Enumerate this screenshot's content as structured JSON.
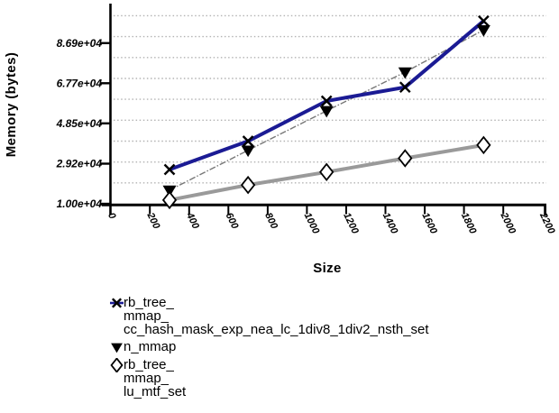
{
  "figure": {
    "background": "#ffffff",
    "axis_color": "#000000"
  },
  "chart_data": {
    "type": "line",
    "title": "",
    "xlabel": "Size",
    "ylabel": "Memory (bytes)",
    "x": [
      300,
      700,
      1100,
      1500,
      1900
    ],
    "series": [
      {
        "name": "rb_tree_mmap_cc_hash_mask_exp_nea_lc_1div8_1div2_nsth_set",
        "legend_text": "rb_tree_\nmmap_\ncc_hash_mask_exp_nea_lc_1div8_1div2_nsth_set",
        "values": [
          26400,
          40000,
          59200,
          65800,
          97500
        ],
        "marker": "x",
        "marker_color": "#000000",
        "line_color": "#1b1b94",
        "line_width": 4,
        "line_dash": ""
      },
      {
        "name": "n_mmap",
        "legend_text": "n_mmap",
        "values": [
          16500,
          35600,
          54500,
          73000,
          93200
        ],
        "marker": "triangle-down",
        "marker_color": "#000000",
        "line_color": "#777777",
        "line_width": 1.4,
        "line_dash": "7 2 1.5 2"
      },
      {
        "name": "rb_tree_mmap_lu_mtf_set",
        "legend_text": "rb_tree_\nmmap_\nlu_mtf_set",
        "values": [
          11800,
          19000,
          25200,
          31800,
          38100
        ],
        "marker": "diamond-open",
        "marker_color": "#000000",
        "marker_fill": "#ffffff",
        "line_color": "#9a9a9a",
        "line_width": 4,
        "line_dash": ""
      }
    ],
    "xticks": [
      0,
      200,
      400,
      600,
      800,
      1000,
      1200,
      1400,
      1600,
      1800,
      2000,
      2200
    ],
    "yticks": [
      {
        "value": 10000,
        "label": "1.00e+04"
      },
      {
        "value": 29200,
        "label": "2.92e+04"
      },
      {
        "value": 48500,
        "label": "4.85e+04"
      },
      {
        "value": 67700,
        "label": "6.77e+04"
      },
      {
        "value": 86900,
        "label": "8.69e+04"
      }
    ],
    "gridlines": [
      20000,
      30000,
      40000,
      50000,
      60000,
      70000,
      80000,
      90000,
      100000
    ],
    "xlim": [
      0,
      2220
    ],
    "ylim": [
      10000,
      106500
    ],
    "grid_style": "dotted-horizontal",
    "grid_color": "#b3b3b3",
    "legend_position": "below-left"
  }
}
